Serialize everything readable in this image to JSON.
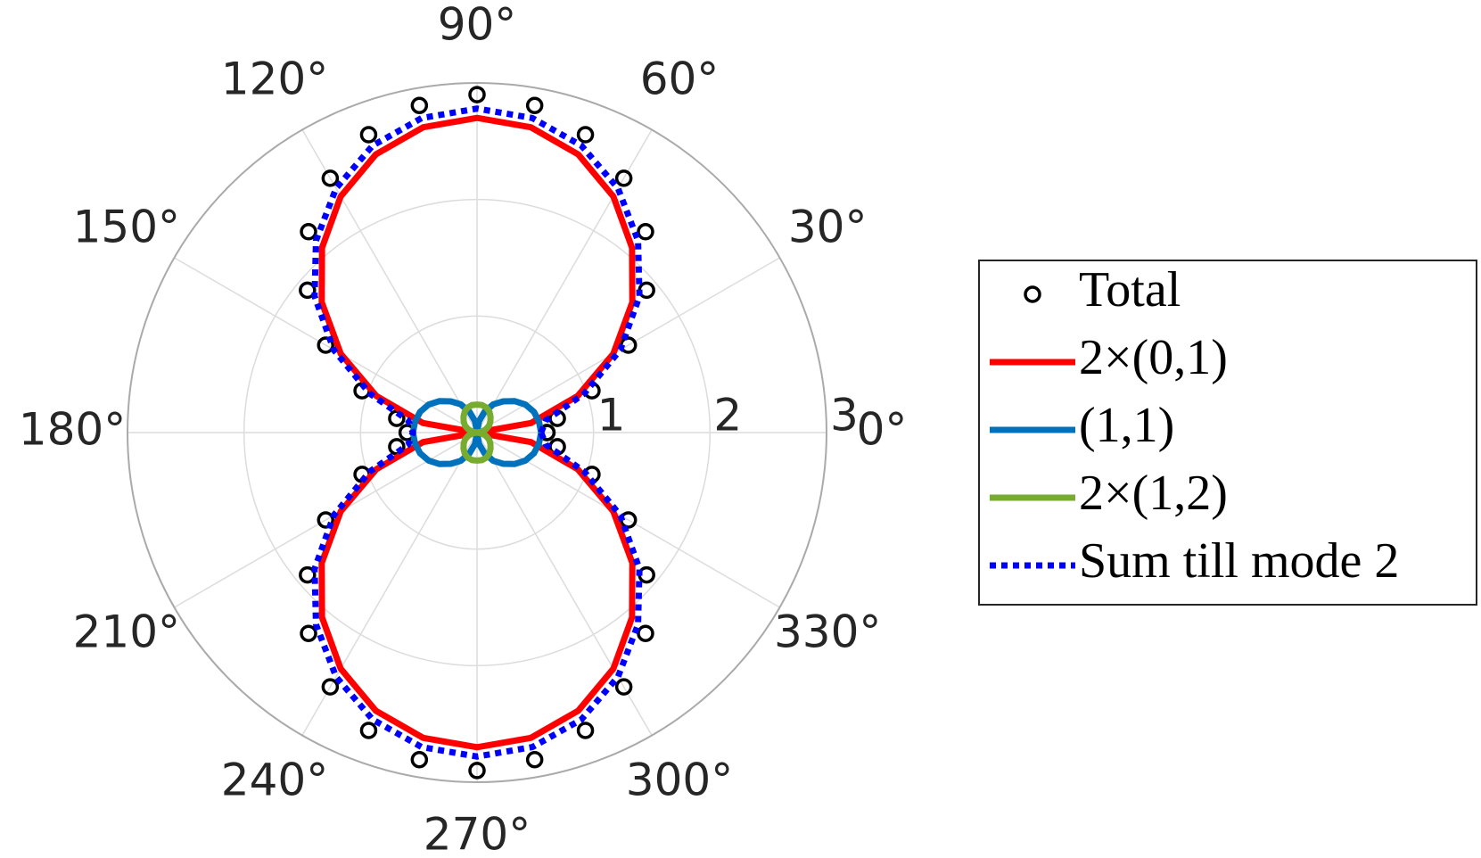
{
  "chart_data": {
    "type": "polar",
    "theta": [
      0,
      10,
      20,
      30,
      40,
      50,
      60,
      70,
      80,
      90,
      100,
      110,
      120,
      130,
      140,
      150,
      160,
      170,
      180,
      190,
      200,
      210,
      220,
      230,
      240,
      250,
      260,
      270,
      280,
      290,
      300,
      310,
      320,
      330,
      340,
      350,
      360
    ],
    "rlim": [
      0,
      3
    ],
    "rticks": [
      1,
      2,
      3
    ],
    "thetaticks": [
      {
        "value": 0,
        "label": "0°"
      },
      {
        "value": 30,
        "label": "30°"
      },
      {
        "value": 60,
        "label": "60°"
      },
      {
        "value": 90,
        "label": "90°"
      },
      {
        "value": 120,
        "label": "120°"
      },
      {
        "value": 150,
        "label": "150°"
      },
      {
        "value": 180,
        "label": "180°"
      },
      {
        "value": 210,
        "label": "210°"
      },
      {
        "value": 240,
        "label": "240°"
      },
      {
        "value": 270,
        "label": "270°"
      },
      {
        "value": 300,
        "label": "300°"
      },
      {
        "value": 330,
        "label": "330°"
      }
    ],
    "grid": true,
    "legend": "right",
    "series": [
      {
        "name": "Total",
        "style": "markers",
        "color": "#000000",
        "values": [
          0.6,
          0.7,
          1.05,
          1.5,
          1.9,
          2.25,
          2.52,
          2.72,
          2.85,
          2.9,
          2.85,
          2.72,
          2.52,
          2.25,
          1.9,
          1.5,
          1.05,
          0.7,
          0.6,
          0.7,
          1.05,
          1.5,
          1.9,
          2.25,
          2.52,
          2.72,
          2.85,
          2.9,
          2.85,
          2.72,
          2.52,
          2.25,
          1.9,
          1.5,
          1.05,
          0.7,
          0.6
        ]
      },
      {
        "name": "2×(0,1)",
        "style": "solid",
        "color": "#ff0000",
        "values": [
          0,
          0.47,
          0.92,
          1.35,
          1.74,
          2.07,
          2.34,
          2.54,
          2.66,
          2.7,
          2.66,
          2.54,
          2.34,
          2.07,
          1.74,
          1.35,
          0.92,
          0.47,
          0,
          0.47,
          0.92,
          1.35,
          1.74,
          2.07,
          2.34,
          2.54,
          2.66,
          2.7,
          2.66,
          2.54,
          2.34,
          2.07,
          1.74,
          1.35,
          0.92,
          0.47,
          0
        ]
      },
      {
        "name": "(1,1)",
        "style": "solid",
        "color": "#0072bd",
        "values": [
          0.55,
          0.54,
          0.52,
          0.48,
          0.42,
          0.35,
          0.28,
          0.19,
          0.1,
          0,
          0.1,
          0.19,
          0.28,
          0.35,
          0.42,
          0.48,
          0.52,
          0.54,
          0.55,
          0.54,
          0.52,
          0.48,
          0.42,
          0.35,
          0.28,
          0.19,
          0.1,
          0,
          0.1,
          0.19,
          0.28,
          0.35,
          0.42,
          0.48,
          0.52,
          0.54,
          0.55
        ]
      },
      {
        "name": "2×(1,2)",
        "style": "solid",
        "color": "#77ac30",
        "values": [
          0,
          0.04,
          0.08,
          0.12,
          0.15,
          0.18,
          0.21,
          0.23,
          0.24,
          0.24,
          0.24,
          0.23,
          0.21,
          0.18,
          0.15,
          0.12,
          0.08,
          0.04,
          0,
          0.04,
          0.08,
          0.12,
          0.15,
          0.18,
          0.21,
          0.23,
          0.24,
          0.24,
          0.24,
          0.23,
          0.21,
          0.18,
          0.15,
          0.12,
          0.08,
          0.04,
          0
        ]
      },
      {
        "name": "Sum till mode 2",
        "style": "dotted",
        "color": "#0000ff",
        "values": [
          0.55,
          0.6,
          0.98,
          1.42,
          1.82,
          2.15,
          2.42,
          2.62,
          2.74,
          2.78,
          2.74,
          2.62,
          2.42,
          2.15,
          1.82,
          1.42,
          0.98,
          0.6,
          0.55,
          0.6,
          0.98,
          1.42,
          1.82,
          2.15,
          2.42,
          2.62,
          2.74,
          2.78,
          2.74,
          2.62,
          2.42,
          2.15,
          1.82,
          1.42,
          0.98,
          0.6,
          0.55
        ]
      }
    ]
  }
}
